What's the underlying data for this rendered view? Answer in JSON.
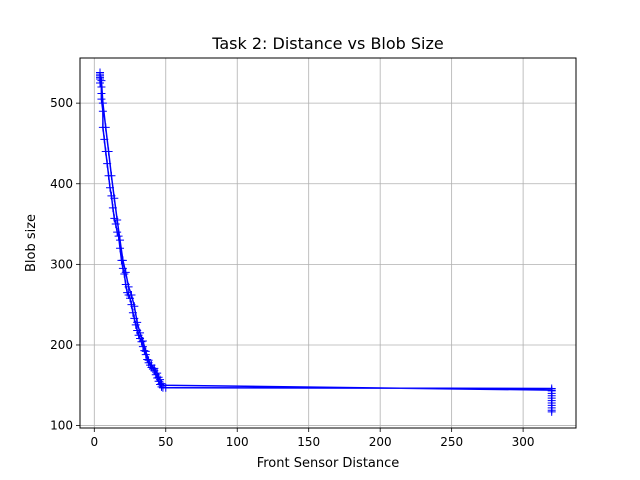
{
  "chart_data": {
    "type": "line",
    "title": "Task 2: Distance vs Blob Size",
    "xlabel": "Front Sensor Distance",
    "ylabel": "Blob size",
    "xlim": [
      -10,
      337
    ],
    "ylim": [
      97,
      556
    ],
    "xticks": [
      0,
      50,
      100,
      150,
      200,
      250,
      300
    ],
    "yticks": [
      100,
      200,
      300,
      400,
      500
    ],
    "grid": true,
    "line_color": "#0000ff",
    "marker": "+",
    "series": [
      {
        "name": "",
        "x": [
          4,
          4,
          4,
          4,
          4,
          5,
          5,
          5,
          6,
          6,
          7,
          8,
          9,
          10,
          11,
          12,
          13,
          14,
          15,
          16,
          17,
          18,
          19,
          20,
          21,
          22,
          23,
          24,
          25,
          26,
          27,
          28,
          29,
          30,
          31,
          32,
          33,
          34,
          35,
          36,
          37,
          38,
          39,
          40,
          41,
          42,
          43,
          44,
          45,
          46,
          47,
          48,
          50,
          320,
          320,
          320,
          320,
          320,
          320,
          320,
          320,
          320,
          320,
          320,
          320,
          48,
          47,
          46,
          45,
          44,
          42,
          40,
          38,
          36,
          34,
          32,
          30,
          28,
          26,
          24,
          22,
          20,
          18,
          16,
          14,
          12,
          10,
          8,
          6,
          5,
          4
        ],
        "y": [
          538,
          534,
          532,
          530,
          525,
          520,
          512,
          505,
          490,
          470,
          455,
          440,
          425,
          410,
          395,
          385,
          370,
          357,
          350,
          340,
          335,
          320,
          305,
          295,
          288,
          275,
          265,
          262,
          258,
          250,
          240,
          233,
          225,
          218,
          212,
          208,
          204,
          198,
          193,
          188,
          182,
          178,
          175,
          172,
          170,
          168,
          163,
          159,
          155,
          151,
          148,
          147,
          147,
          146,
          143,
          140,
          137,
          134,
          131,
          128,
          125,
          122,
          119,
          117,
          144,
          150,
          152,
          157,
          160,
          165,
          171,
          175,
          181,
          192,
          205,
          215,
          228,
          248,
          262,
          272,
          290,
          305,
          330,
          355,
          382,
          410,
          440,
          470,
          500,
          528,
          536
        ]
      }
    ]
  }
}
